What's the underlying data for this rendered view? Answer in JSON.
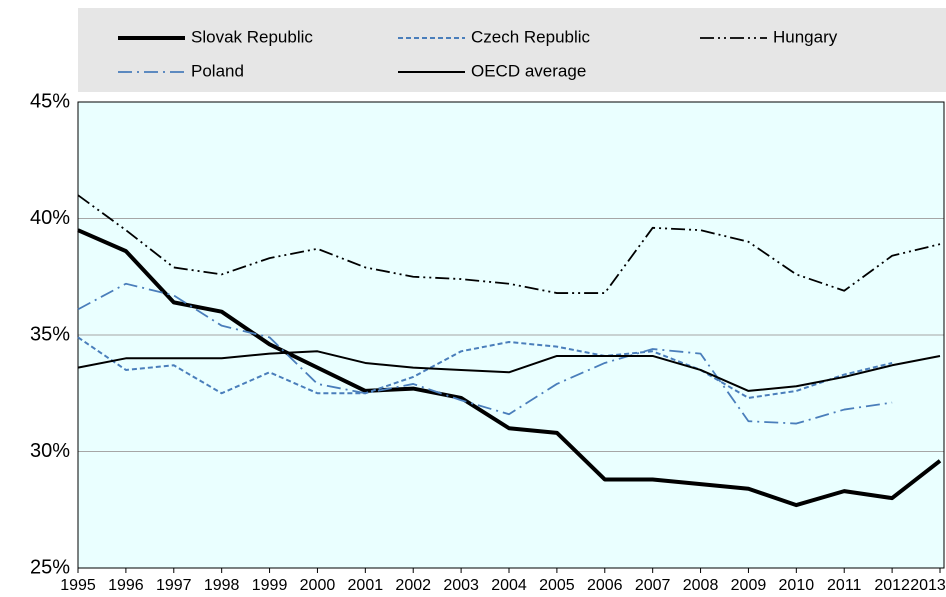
{
  "chart_data": {
    "type": "line",
    "x": [
      1995,
      1996,
      1997,
      1998,
      1999,
      2000,
      2001,
      2002,
      2003,
      2004,
      2005,
      2006,
      2007,
      2008,
      2009,
      2010,
      2011,
      2012,
      2013
    ],
    "xlim": [
      1995,
      2013
    ],
    "ylim": [
      25,
      45
    ],
    "yticks": [
      {
        "value": 25,
        "label": "25%"
      },
      {
        "value": 30,
        "label": "30%"
      },
      {
        "value": 35,
        "label": "35%"
      },
      {
        "value": 40,
        "label": "40%"
      },
      {
        "value": 45,
        "label": "45%"
      }
    ],
    "grid": true,
    "legend": "top",
    "series": [
      {
        "name": "Slovak Republic",
        "color": "#000000",
        "style": "thick",
        "values": [
          39.5,
          38.6,
          36.4,
          36.0,
          34.6,
          33.6,
          32.6,
          32.7,
          32.3,
          31.0,
          30.8,
          28.8,
          28.8,
          28.6,
          28.4,
          27.7,
          28.3,
          28.0,
          29.6
        ]
      },
      {
        "name": "Czech Republic",
        "color": "#4a7ebb",
        "style": "dashed",
        "values": [
          34.9,
          33.5,
          33.7,
          32.5,
          33.4,
          32.5,
          32.5,
          33.2,
          34.3,
          34.7,
          34.5,
          34.1,
          34.3,
          33.5,
          32.3,
          32.6,
          33.3,
          33.8,
          null
        ]
      },
      {
        "name": "Hungary",
        "color": "#000000",
        "style": "dash-dot-dot",
        "values": [
          41.0,
          39.5,
          37.9,
          37.6,
          38.3,
          38.7,
          37.9,
          37.5,
          37.4,
          37.2,
          36.8,
          36.8,
          39.6,
          39.5,
          39.0,
          37.6,
          36.9,
          38.4,
          38.9
        ]
      },
      {
        "name": "Poland",
        "color": "#4a7ebb",
        "style": "dash-dot",
        "values": [
          36.1,
          37.2,
          36.7,
          35.4,
          34.9,
          32.9,
          32.5,
          32.9,
          32.2,
          31.6,
          32.9,
          33.8,
          34.4,
          34.2,
          31.3,
          31.2,
          31.8,
          32.1,
          null
        ]
      },
      {
        "name": "OECD average",
        "color": "#000000",
        "style": "solid",
        "values": [
          33.6,
          34.0,
          34.0,
          34.0,
          34.2,
          34.3,
          33.8,
          33.6,
          33.5,
          33.4,
          34.1,
          34.1,
          34.1,
          33.5,
          32.6,
          32.8,
          33.2,
          33.7,
          34.1
        ]
      }
    ]
  }
}
